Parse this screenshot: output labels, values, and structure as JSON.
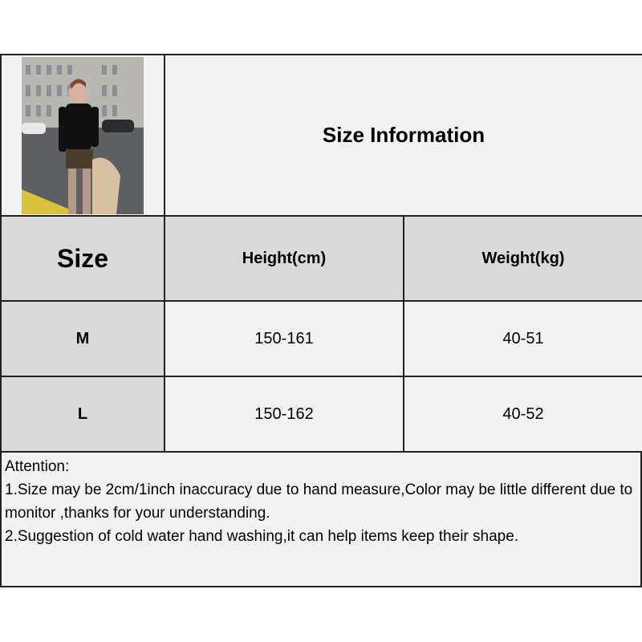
{
  "title": "Size Information",
  "headers": {
    "size": "Size",
    "height": "Height(cm)",
    "weight": "Weight(kg)"
  },
  "rows": [
    {
      "size": "M",
      "height": "150-161",
      "weight": "40-51"
    },
    {
      "size": "L",
      "height": "150-162",
      "weight": "40-52"
    }
  ],
  "notes": {
    "heading": "Attention:",
    "line1": "1.Size may be 2cm/1inch inaccuracy due to hand measure,Color may be little different due to monitor ,thanks for your understanding.",
    "line2": "2.Suggestion of cold water hand washing,it can help items keep their shape."
  },
  "colors": {
    "header_gray": "#d9d9d9",
    "cell_light": "#f2f2f2",
    "border": "#222222"
  }
}
